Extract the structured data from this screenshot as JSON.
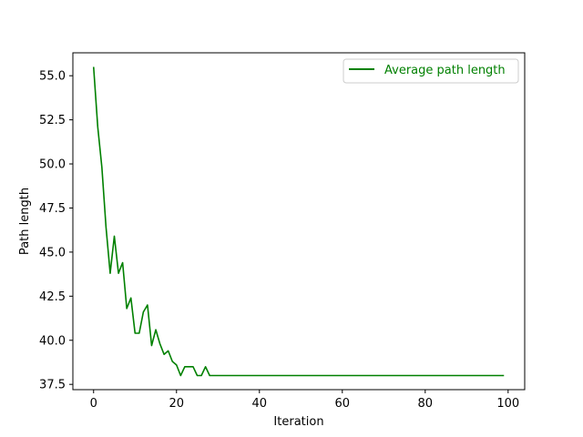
{
  "chart_data": {
    "type": "line",
    "title": "",
    "xlabel": "Iteration",
    "ylabel": "Path length",
    "xlim": [
      -5,
      104
    ],
    "ylim": [
      37.2,
      56.3
    ],
    "xticks": [
      0,
      20,
      40,
      60,
      80,
      100
    ],
    "yticks": [
      37.5,
      40.0,
      42.5,
      45.0,
      47.5,
      50.0,
      52.5,
      55.0
    ],
    "ytick_labels": [
      "37.5",
      "40.0",
      "42.5",
      "45.0",
      "47.5",
      "50.0",
      "52.5",
      "55.0"
    ],
    "grid": false,
    "legend": {
      "position": "top-right"
    },
    "series": [
      {
        "name": "Average path length",
        "color": "#008000",
        "x": [
          0,
          1,
          2,
          3,
          4,
          5,
          6,
          7,
          8,
          9,
          10,
          11,
          12,
          13,
          14,
          15,
          16,
          17,
          18,
          19,
          20,
          21,
          22,
          23,
          24,
          25,
          26,
          27,
          28,
          99
        ],
        "y": [
          55.5,
          52.1,
          49.8,
          46.4,
          43.8,
          45.9,
          43.8,
          44.4,
          41.8,
          42.4,
          40.4,
          40.4,
          41.6,
          42.0,
          39.7,
          40.6,
          39.8,
          39.2,
          39.4,
          38.8,
          38.6,
          38.0,
          38.5,
          38.5,
          38.5,
          38.0,
          38.0,
          38.5,
          38.0,
          38.0
        ]
      }
    ]
  }
}
